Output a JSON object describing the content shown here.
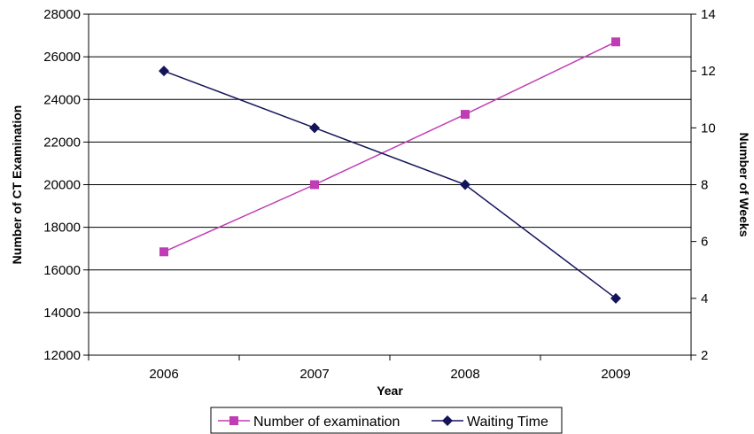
{
  "chart_data": {
    "type": "line",
    "categories": [
      "2006",
      "2007",
      "2008",
      "2009"
    ],
    "series": [
      {
        "name": "Number of examination",
        "axis": "left",
        "values": [
          16850,
          20000,
          23300,
          26700
        ],
        "color": "#c03cb4",
        "marker": "square"
      },
      {
        "name": "Waiting Time",
        "axis": "right",
        "values": [
          12,
          10,
          8,
          4
        ],
        "color": "#14145a",
        "marker": "diamond"
      }
    ],
    "xlabel": "Year",
    "ylabel": "Number of CT Examination",
    "y2label": "Number of Weeks",
    "ylim": [
      12000,
      28000
    ],
    "yticks": [
      12000,
      14000,
      16000,
      18000,
      20000,
      22000,
      24000,
      26000,
      28000
    ],
    "y2lim": [
      2,
      14
    ],
    "y2ticks": [
      2,
      4,
      6,
      8,
      10,
      12,
      14
    ],
    "grid": true,
    "legend_position": "bottom"
  }
}
